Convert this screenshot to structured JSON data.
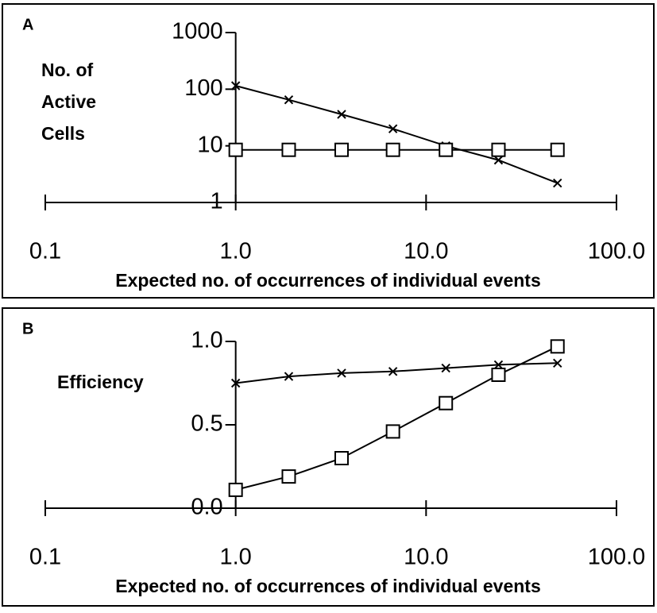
{
  "chart_data": [
    {
      "type": "line",
      "panel_label": "A",
      "ylabel": [
        "No. of",
        "Active",
        "Cells"
      ],
      "xlabel": "Expected no. of occurrences of individual events",
      "xscale": "log",
      "yscale": "log",
      "xlim": [
        0.1,
        100
      ],
      "xticks": [
        0.1,
        {
          "value": 1,
          "label": "1.0"
        },
        {
          "value": 10,
          "label": "10.0"
        },
        {
          "value": 100,
          "label": "100.0"
        }
      ],
      "ylim": [
        1,
        1000
      ],
      "yticks": [
        1,
        10,
        100,
        1000
      ],
      "x": [
        1,
        1.9,
        3.6,
        6.7,
        12.7,
        24,
        49
      ],
      "series": [
        {
          "marker": "x",
          "color": "#000000",
          "values": [
            115,
            65,
            36,
            20,
            10,
            5.6,
            2.2
          ]
        },
        {
          "marker": "square",
          "color": "#000000",
          "values": [
            8.5,
            8.5,
            8.5,
            8.5,
            8.5,
            8.5,
            8.5
          ]
        }
      ]
    },
    {
      "type": "line",
      "panel_label": "B",
      "ylabel": [
        "Efficiency"
      ],
      "xlabel": "Expected no. of occurrences of individual events",
      "xscale": "log",
      "yscale": "linear",
      "xlim": [
        0.1,
        100
      ],
      "xticks": [
        0.1,
        {
          "value": 1,
          "label": "1.0"
        },
        {
          "value": 10,
          "label": "10.0"
        },
        {
          "value": 100,
          "label": "100.0"
        }
      ],
      "ylim": [
        0,
        1
      ],
      "yticks": [
        {
          "value": 0,
          "label": "0.0"
        },
        0.5,
        {
          "value": 1,
          "label": "1.0"
        }
      ],
      "x": [
        1,
        1.9,
        3.6,
        6.7,
        12.7,
        24,
        49
      ],
      "series": [
        {
          "marker": "x",
          "color": "#000000",
          "values": [
            0.75,
            0.79,
            0.81,
            0.82,
            0.84,
            0.86,
            0.87
          ]
        },
        {
          "marker": "square",
          "color": "#000000",
          "values": [
            0.11,
            0.19,
            0.3,
            0.46,
            0.63,
            0.8,
            0.97
          ]
        }
      ]
    }
  ]
}
